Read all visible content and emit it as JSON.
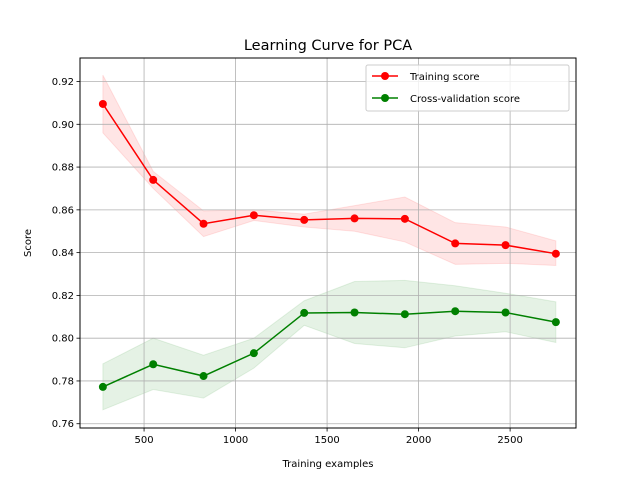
{
  "chart_data": {
    "type": "line",
    "title": "Learning Curve for PCA",
    "xlabel": "Training examples",
    "ylabel": "Score",
    "xlim": [
      150,
      2860
    ],
    "ylim": [
      0.758,
      0.931
    ],
    "xticks": [
      500,
      1000,
      1500,
      2000,
      2500
    ],
    "yticks": [
      0.76,
      0.78,
      0.8,
      0.82,
      0.84,
      0.86,
      0.88,
      0.9,
      0.92
    ],
    "ytick_labels": [
      "0.76",
      "0.78",
      "0.80",
      "0.82",
      "0.84",
      "0.86",
      "0.88",
      "0.90",
      "0.92"
    ],
    "grid": true,
    "legend_position": "upper right",
    "x": [
      275,
      550,
      825,
      1100,
      1375,
      1650,
      1925,
      2200,
      2475,
      2750
    ],
    "series": [
      {
        "name": "Training score",
        "color": "#ff0000",
        "band_color": "#ff0000",
        "values": [
          0.9095,
          0.874,
          0.8535,
          0.8575,
          0.8553,
          0.856,
          0.8558,
          0.8443,
          0.8435,
          0.8395
        ],
        "lower": [
          0.896,
          0.87,
          0.8475,
          0.855,
          0.852,
          0.85,
          0.845,
          0.8345,
          0.835,
          0.834
        ],
        "upper": [
          0.923,
          0.878,
          0.8595,
          0.86,
          0.858,
          0.862,
          0.866,
          0.854,
          0.852,
          0.8455
        ]
      },
      {
        "name": "Cross-validation score",
        "color": "#008000",
        "band_color": "#008000",
        "values": [
          0.7772,
          0.7878,
          0.7823,
          0.793,
          0.8118,
          0.812,
          0.8112,
          0.8126,
          0.812,
          0.8075
        ],
        "lower": [
          0.7665,
          0.776,
          0.772,
          0.786,
          0.806,
          0.7975,
          0.7955,
          0.801,
          0.803,
          0.798
        ],
        "upper": [
          0.788,
          0.8,
          0.792,
          0.8,
          0.8175,
          0.8265,
          0.827,
          0.8245,
          0.821,
          0.817
        ]
      }
    ]
  }
}
